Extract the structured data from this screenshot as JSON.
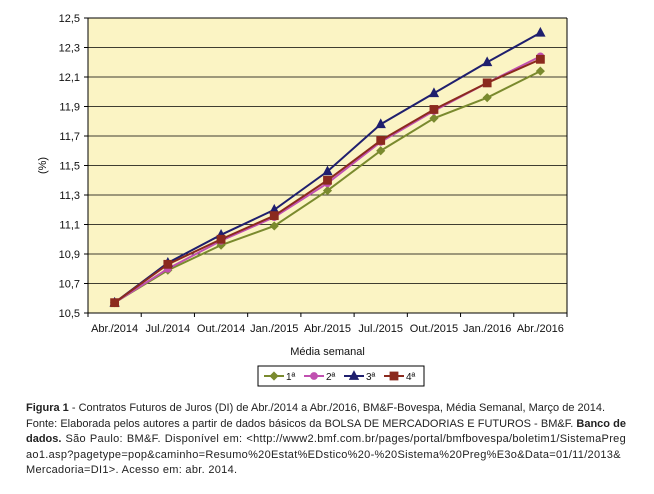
{
  "chart_data": {
    "type": "line",
    "xlabel": "Média semanal",
    "ylabel": "(%)",
    "categories": [
      "Abr./2014",
      "Jul./2014",
      "Out./2014",
      "Jan./2015",
      "Abr./2015",
      "Jul./2015",
      "Out./2015",
      "Jan./2016",
      "Abr./2016"
    ],
    "y_ticks": [
      "12,5",
      "12,3",
      "12,1",
      "11,9",
      "11,7",
      "11,5",
      "11,3",
      "11,1",
      "10,9",
      "10,7",
      "10,5"
    ],
    "ylim": [
      10.5,
      12.5
    ],
    "grid": true,
    "legend_position": "bottom",
    "series": [
      {
        "name": "1ª",
        "color": "#7a8a2e",
        "marker": "diamond",
        "values": [
          10.57,
          10.79,
          10.96,
          11.09,
          11.33,
          11.6,
          11.82,
          11.96,
          12.14
        ]
      },
      {
        "name": "2ª",
        "color": "#c050b0",
        "marker": "circle",
        "values": [
          10.57,
          10.8,
          10.99,
          11.15,
          11.38,
          11.66,
          11.87,
          12.06,
          12.24
        ]
      },
      {
        "name": "3ª",
        "color": "#1f1f6e",
        "marker": "triangle",
        "values": [
          10.57,
          10.84,
          11.03,
          11.2,
          11.46,
          11.78,
          11.99,
          12.2,
          12.4
        ]
      },
      {
        "name": "4ª",
        "color": "#8b2a1e",
        "marker": "square",
        "values": [
          10.57,
          10.83,
          11.0,
          11.16,
          11.4,
          11.67,
          11.88,
          12.06,
          12.22
        ]
      }
    ],
    "plot_background": "#fbf4c4"
  },
  "caption": {
    "figure_label": "Figura 1",
    "figure_text": " - Contratos Futuros de Juros (DI) de Abr./2014 a Abr./2016, BM&F-Bovespa, Média Semanal, Março de 2014.",
    "fonte_prefix": "Fonte: Elaborada pelos autores a partir de dados básicos da BOLSA DE MERCADORIAS E FUTUROS - BM&F.",
    "fonte_bold": "Banco de dados.",
    "fonte_rest": " São Paulo: BM&F. Disponível em: <http://www2.bmf.com.br/pages/portal/bmfbovespa/boletim1/SistemaPregao1.asp?pagetype=pop&caminho=Resumo%20Estat%EDstico%20-%20Sistema%20Preg%E3o&Data=01/11/2013&Mercadoria=DI1>. Acesso em: abr. 2014."
  }
}
